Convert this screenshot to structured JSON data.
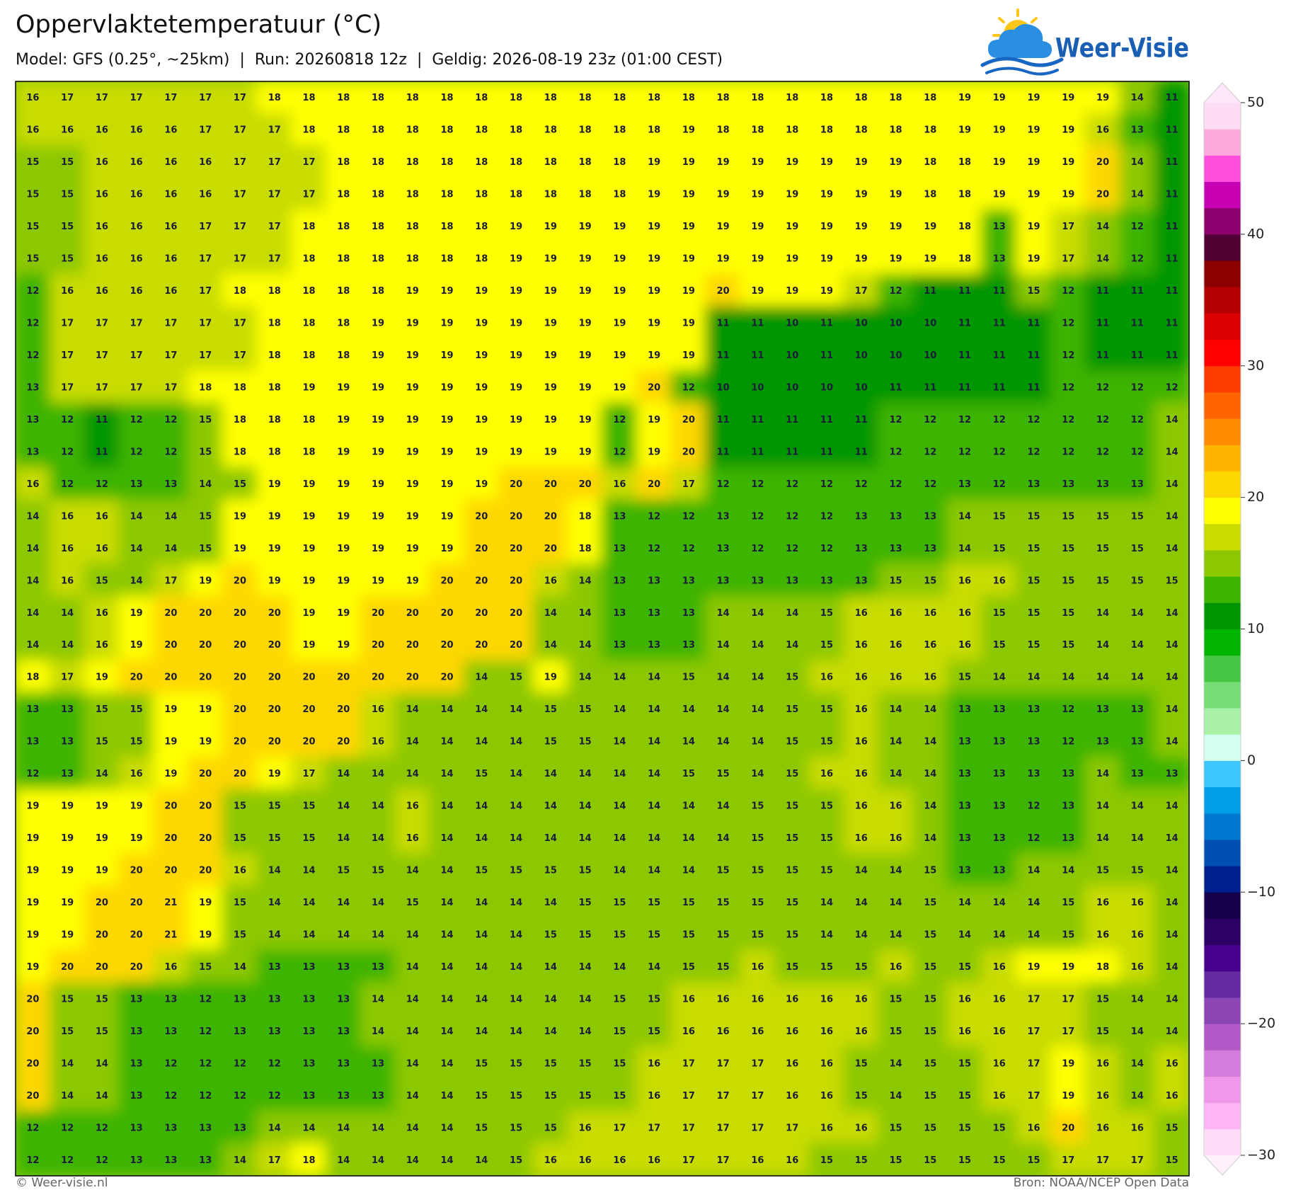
{
  "header": {
    "title": "Oppervlaktetemperatuur (°C)",
    "subtitle": "Model: GFS (0.25°, ~25km)  |  Run: 20260818 12z  |  Geldig: 2026-08-19 23z (01:00 CEST)"
  },
  "logo": {
    "text": "Weer-Visie"
  },
  "map": {
    "rows": [
      [
        16,
        17,
        17,
        17,
        17,
        17,
        17,
        18,
        18,
        18,
        18,
        18,
        18,
        18,
        18,
        18,
        18,
        18,
        18,
        18,
        18,
        18,
        18,
        18,
        18,
        18,
        18,
        19,
        19,
        19,
        19,
        19,
        14,
        11
      ],
      [
        16,
        16,
        16,
        16,
        16,
        17,
        17,
        17,
        18,
        18,
        18,
        18,
        18,
        18,
        18,
        18,
        18,
        18,
        18,
        19,
        18,
        18,
        18,
        18,
        18,
        18,
        18,
        19,
        19,
        19,
        19,
        16,
        13,
        11
      ],
      [
        15,
        15,
        16,
        16,
        16,
        16,
        17,
        17,
        17,
        18,
        18,
        18,
        18,
        18,
        18,
        18,
        18,
        18,
        19,
        19,
        19,
        19,
        19,
        19,
        19,
        19,
        18,
        18,
        19,
        19,
        19,
        20,
        14,
        11
      ],
      [
        15,
        15,
        16,
        16,
        16,
        16,
        17,
        17,
        17,
        18,
        18,
        18,
        18,
        18,
        18,
        18,
        18,
        18,
        19,
        19,
        19,
        19,
        19,
        19,
        19,
        19,
        18,
        18,
        19,
        19,
        19,
        20,
        14,
        11
      ],
      [
        15,
        15,
        16,
        16,
        16,
        17,
        17,
        17,
        18,
        18,
        18,
        18,
        18,
        18,
        19,
        19,
        19,
        19,
        19,
        19,
        19,
        19,
        19,
        19,
        19,
        19,
        19,
        18,
        13,
        19,
        17,
        14,
        12,
        11
      ],
      [
        15,
        15,
        16,
        16,
        16,
        17,
        17,
        17,
        18,
        18,
        18,
        18,
        18,
        18,
        19,
        19,
        19,
        19,
        19,
        19,
        19,
        19,
        19,
        19,
        19,
        19,
        19,
        18,
        13,
        19,
        17,
        14,
        12,
        11
      ],
      [
        12,
        16,
        16,
        16,
        16,
        17,
        18,
        18,
        18,
        18,
        18,
        19,
        19,
        19,
        19,
        19,
        19,
        19,
        19,
        19,
        20,
        19,
        19,
        19,
        17,
        12,
        11,
        11,
        11,
        15,
        12,
        11,
        11,
        11
      ],
      [
        12,
        17,
        17,
        17,
        17,
        17,
        17,
        18,
        18,
        18,
        19,
        19,
        19,
        19,
        19,
        19,
        19,
        19,
        19,
        19,
        11,
        11,
        10,
        11,
        10,
        10,
        10,
        11,
        11,
        11,
        12,
        11,
        11,
        11
      ],
      [
        12,
        17,
        17,
        17,
        17,
        17,
        17,
        18,
        18,
        18,
        19,
        19,
        19,
        19,
        19,
        19,
        19,
        19,
        19,
        19,
        11,
        11,
        10,
        11,
        10,
        10,
        10,
        11,
        11,
        11,
        12,
        11,
        11,
        11
      ],
      [
        13,
        17,
        17,
        17,
        17,
        18,
        18,
        18,
        19,
        19,
        19,
        19,
        19,
        19,
        19,
        19,
        19,
        19,
        20,
        12,
        10,
        10,
        10,
        10,
        10,
        11,
        11,
        11,
        11,
        11,
        12,
        12,
        12,
        12
      ],
      [
        13,
        12,
        11,
        12,
        12,
        15,
        18,
        18,
        18,
        19,
        19,
        19,
        19,
        19,
        19,
        19,
        19,
        12,
        19,
        20,
        11,
        11,
        11,
        11,
        11,
        12,
        12,
        12,
        12,
        12,
        12,
        12,
        12,
        14
      ],
      [
        13,
        12,
        11,
        12,
        12,
        15,
        18,
        18,
        18,
        19,
        19,
        19,
        19,
        19,
        19,
        19,
        19,
        12,
        19,
        20,
        11,
        11,
        11,
        11,
        11,
        12,
        12,
        12,
        12,
        12,
        12,
        12,
        12,
        14
      ],
      [
        16,
        12,
        12,
        13,
        13,
        14,
        15,
        19,
        19,
        19,
        19,
        19,
        19,
        19,
        20,
        20,
        20,
        16,
        20,
        17,
        12,
        12,
        12,
        12,
        12,
        12,
        12,
        13,
        12,
        13,
        13,
        13,
        13,
        14
      ],
      [
        14,
        16,
        16,
        14,
        14,
        15,
        19,
        19,
        19,
        19,
        19,
        19,
        19,
        20,
        20,
        20,
        18,
        13,
        12,
        12,
        13,
        12,
        12,
        12,
        13,
        13,
        13,
        14,
        15,
        15,
        15,
        15,
        15,
        14
      ],
      [
        14,
        16,
        16,
        14,
        14,
        15,
        19,
        19,
        19,
        19,
        19,
        19,
        19,
        20,
        20,
        20,
        18,
        13,
        12,
        12,
        13,
        12,
        12,
        12,
        13,
        13,
        13,
        14,
        15,
        15,
        15,
        15,
        15,
        14
      ],
      [
        14,
        16,
        15,
        14,
        17,
        19,
        20,
        19,
        19,
        19,
        19,
        19,
        20,
        20,
        20,
        16,
        14,
        13,
        13,
        13,
        13,
        13,
        13,
        13,
        13,
        15,
        15,
        16,
        16,
        15,
        15,
        15,
        15,
        15
      ],
      [
        14,
        14,
        16,
        19,
        20,
        20,
        20,
        20,
        19,
        19,
        20,
        20,
        20,
        20,
        20,
        14,
        14,
        13,
        13,
        13,
        14,
        14,
        14,
        15,
        16,
        16,
        16,
        16,
        15,
        15,
        15,
        14,
        14,
        14
      ],
      [
        14,
        14,
        16,
        19,
        20,
        20,
        20,
        20,
        19,
        19,
        20,
        20,
        20,
        20,
        20,
        14,
        14,
        13,
        13,
        13,
        14,
        14,
        14,
        15,
        16,
        16,
        16,
        16,
        15,
        15,
        15,
        14,
        14,
        14
      ],
      [
        18,
        17,
        19,
        20,
        20,
        20,
        20,
        20,
        20,
        20,
        20,
        20,
        20,
        14,
        15,
        19,
        14,
        14,
        14,
        15,
        14,
        14,
        15,
        16,
        16,
        16,
        16,
        15,
        14,
        14,
        14,
        14,
        14,
        14
      ],
      [
        13,
        13,
        15,
        15,
        19,
        19,
        20,
        20,
        20,
        20,
        16,
        14,
        14,
        14,
        14,
        15,
        15,
        14,
        14,
        14,
        14,
        14,
        15,
        15,
        16,
        14,
        14,
        13,
        13,
        13,
        12,
        13,
        13,
        14
      ],
      [
        13,
        13,
        15,
        15,
        19,
        19,
        20,
        20,
        20,
        20,
        16,
        14,
        14,
        14,
        14,
        15,
        15,
        14,
        14,
        14,
        14,
        14,
        15,
        15,
        16,
        14,
        14,
        13,
        13,
        13,
        12,
        13,
        13,
        14
      ],
      [
        12,
        13,
        14,
        16,
        19,
        20,
        20,
        19,
        17,
        14,
        14,
        14,
        14,
        15,
        14,
        14,
        14,
        14,
        14,
        15,
        15,
        14,
        15,
        16,
        16,
        14,
        14,
        13,
        13,
        13,
        13,
        14,
        13,
        13
      ],
      [
        19,
        19,
        19,
        19,
        20,
        20,
        15,
        15,
        15,
        14,
        14,
        16,
        14,
        14,
        14,
        14,
        14,
        14,
        14,
        14,
        14,
        15,
        15,
        15,
        16,
        16,
        14,
        13,
        13,
        12,
        13,
        14,
        14,
        14
      ],
      [
        19,
        19,
        19,
        19,
        20,
        20,
        15,
        15,
        15,
        14,
        14,
        16,
        14,
        14,
        14,
        14,
        14,
        14,
        14,
        14,
        14,
        15,
        15,
        15,
        16,
        16,
        14,
        13,
        13,
        12,
        13,
        14,
        14,
        14
      ],
      [
        19,
        19,
        19,
        20,
        20,
        20,
        16,
        14,
        14,
        15,
        15,
        14,
        14,
        15,
        15,
        15,
        15,
        14,
        14,
        14,
        15,
        15,
        15,
        15,
        14,
        14,
        15,
        13,
        13,
        14,
        14,
        15,
        15,
        14
      ],
      [
        19,
        19,
        20,
        20,
        21,
        19,
        15,
        14,
        14,
        14,
        14,
        15,
        14,
        14,
        14,
        14,
        15,
        15,
        15,
        15,
        15,
        15,
        15,
        14,
        14,
        14,
        15,
        14,
        14,
        14,
        15,
        16,
        16,
        14
      ],
      [
        19,
        19,
        20,
        20,
        21,
        19,
        15,
        14,
        14,
        14,
        14,
        14,
        14,
        14,
        14,
        15,
        15,
        15,
        15,
        15,
        15,
        15,
        15,
        14,
        14,
        14,
        15,
        14,
        14,
        14,
        15,
        16,
        16,
        14
      ],
      [
        19,
        20,
        20,
        20,
        16,
        15,
        14,
        13,
        13,
        13,
        13,
        14,
        14,
        14,
        14,
        14,
        14,
        14,
        14,
        15,
        15,
        16,
        15,
        15,
        15,
        16,
        15,
        15,
        16,
        19,
        19,
        18,
        16,
        14
      ],
      [
        20,
        15,
        15,
        13,
        13,
        12,
        13,
        13,
        13,
        13,
        14,
        14,
        14,
        14,
        14,
        14,
        14,
        15,
        15,
        16,
        16,
        16,
        16,
        16,
        16,
        15,
        15,
        16,
        16,
        17,
        17,
        15,
        14,
        14
      ],
      [
        20,
        15,
        15,
        13,
        13,
        12,
        13,
        13,
        13,
        13,
        14,
        14,
        14,
        14,
        14,
        14,
        14,
        15,
        15,
        16,
        16,
        16,
        16,
        16,
        16,
        15,
        15,
        16,
        16,
        17,
        17,
        15,
        14,
        14
      ],
      [
        20,
        14,
        14,
        13,
        12,
        12,
        12,
        12,
        13,
        13,
        13,
        14,
        14,
        15,
        15,
        15,
        15,
        15,
        16,
        17,
        17,
        17,
        16,
        16,
        15,
        14,
        15,
        15,
        16,
        17,
        19,
        16,
        14,
        16
      ],
      [
        20,
        14,
        14,
        13,
        12,
        12,
        12,
        12,
        13,
        13,
        13,
        14,
        14,
        15,
        15,
        15,
        15,
        15,
        16,
        17,
        17,
        17,
        16,
        16,
        15,
        14,
        15,
        15,
        16,
        17,
        19,
        16,
        14,
        16
      ],
      [
        12,
        12,
        12,
        13,
        13,
        13,
        13,
        14,
        14,
        14,
        14,
        14,
        14,
        15,
        15,
        15,
        16,
        17,
        17,
        17,
        17,
        17,
        17,
        16,
        16,
        15,
        15,
        15,
        15,
        16,
        20,
        16,
        16,
        15
      ],
      [
        12,
        12,
        12,
        13,
        13,
        13,
        14,
        17,
        18,
        14,
        14,
        14,
        14,
        14,
        15,
        16,
        16,
        16,
        16,
        17,
        17,
        16,
        16,
        15,
        15,
        15,
        15,
        15,
        15,
        15,
        17,
        17,
        17,
        15
      ]
    ]
  },
  "colorbar": {
    "lim": [
      -30,
      50
    ],
    "colors": [
      "#ffdcfa",
      "#ffb4f5",
      "#f096eb",
      "#d27ddc",
      "#b45ac8",
      "#8c46b4",
      "#6428a0",
      "#46008c",
      "#2d0064",
      "#14004b",
      "#001e8c",
      "#0050b4",
      "#0078d2",
      "#00a0e6",
      "#3cc8ff",
      "#d2fff0",
      "#a8f0a8",
      "#78dc78",
      "#46c846",
      "#00b400",
      "#009600",
      "#3cb400",
      "#8cc800",
      "#c8dc00",
      "#ffff00",
      "#ffd700",
      "#ffb400",
      "#ff8c00",
      "#ff6400",
      "#ff3c00",
      "#ff0000",
      "#dc0000",
      "#b40000",
      "#8c0000",
      "#500032",
      "#8c006e",
      "#c800b4",
      "#ff50dc",
      "#ffaadc",
      "#ffdcf5"
    ],
    "under": "#fff0fc",
    "over": "#ffe6f8",
    "ticks": [
      50,
      40,
      30,
      20,
      10,
      0,
      {
        "value": -10,
        "label": "−10"
      },
      {
        "value": -20,
        "label": "−20"
      },
      {
        "value": -30,
        "label": "−30"
      }
    ]
  },
  "footer": {
    "left": "© Weer-visie.nl",
    "right": "Bron: NOAA/NCEP Open Data"
  }
}
